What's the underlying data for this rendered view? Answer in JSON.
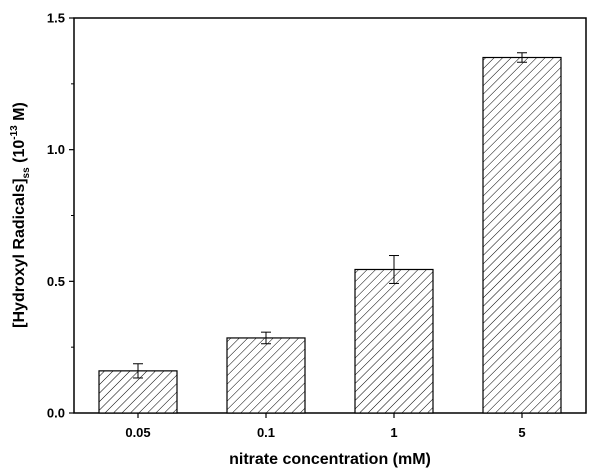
{
  "chart_data": {
    "type": "bar",
    "categories": [
      "0.05",
      "0.1",
      "1",
      "5"
    ],
    "values": [
      0.16,
      0.285,
      0.545,
      1.35
    ],
    "errors": [
      0.027,
      0.022,
      0.053,
      0.018
    ],
    "xlabel": "nitrate concentration (mM)",
    "ylabel": {
      "main": "[Hydroxyl Radicals]",
      "subscript": "ss",
      "unit_prefix": " (10",
      "exponent": "-13",
      "unit_suffix": " M)"
    },
    "ylim": [
      0,
      1.5
    ],
    "yticks": [
      0.0,
      0.5,
      1.0,
      1.5
    ],
    "ytick_labels": [
      "0.0",
      "0.5",
      "1.0",
      "1.5"
    ],
    "bar_pattern": "diagonal-hatch",
    "colors": {
      "bar_fill": "#ffffff",
      "hatch": "#000000",
      "axis": "#000000"
    },
    "grid": false,
    "legend": "none"
  }
}
